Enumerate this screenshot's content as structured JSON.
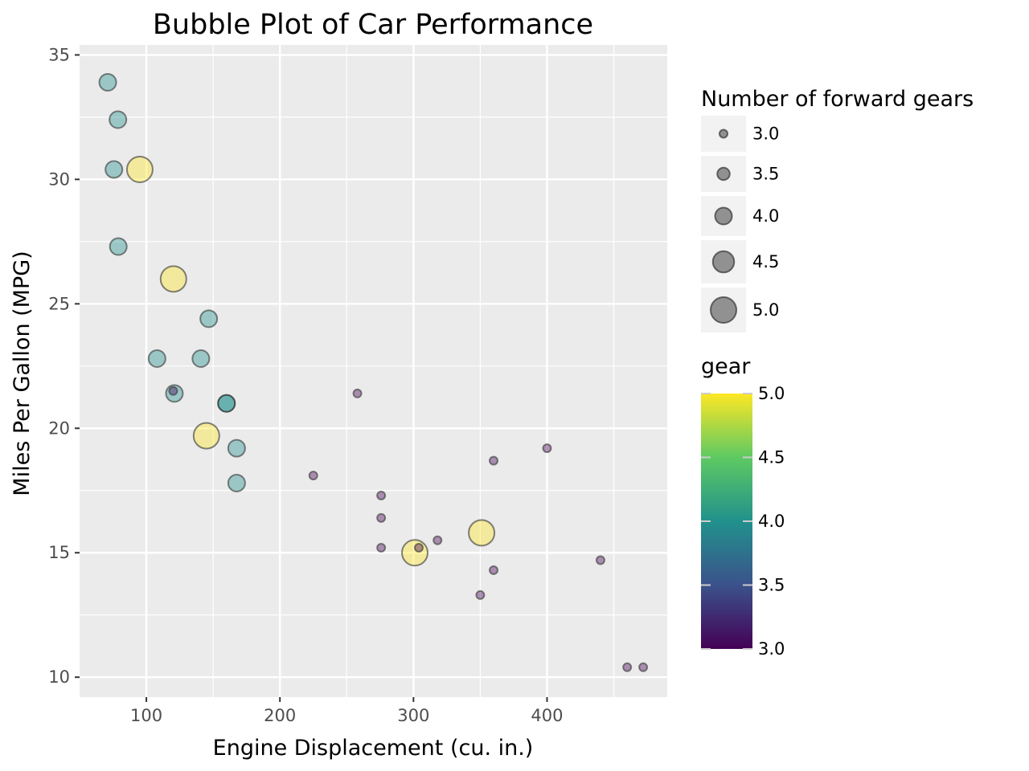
{
  "chart_data": {
    "type": "scatter",
    "title": "Bubble Plot of Car Performance",
    "xlabel": "Engine Displacement (cu. in.)",
    "ylabel": "Miles Per Gallon (MPG)",
    "xlim": [
      50,
      490
    ],
    "ylim": [
      9.2,
      35.4
    ],
    "x_ticks": [
      100,
      200,
      300,
      400
    ],
    "y_ticks": [
      10,
      15,
      20,
      25,
      30,
      35
    ],
    "grid": true,
    "points": [
      {
        "x": 160,
        "y": 21.0,
        "gear": 4
      },
      {
        "x": 160,
        "y": 21.0,
        "gear": 4
      },
      {
        "x": 108,
        "y": 22.8,
        "gear": 4
      },
      {
        "x": 258,
        "y": 21.4,
        "gear": 3
      },
      {
        "x": 360,
        "y": 18.7,
        "gear": 3
      },
      {
        "x": 225,
        "y": 18.1,
        "gear": 3
      },
      {
        "x": 360,
        "y": 14.3,
        "gear": 3
      },
      {
        "x": 146.7,
        "y": 24.4,
        "gear": 4
      },
      {
        "x": 140.8,
        "y": 22.8,
        "gear": 4
      },
      {
        "x": 167.6,
        "y": 19.2,
        "gear": 4
      },
      {
        "x": 167.6,
        "y": 17.8,
        "gear": 4
      },
      {
        "x": 275.8,
        "y": 16.4,
        "gear": 3
      },
      {
        "x": 275.8,
        "y": 17.3,
        "gear": 3
      },
      {
        "x": 275.8,
        "y": 15.2,
        "gear": 3
      },
      {
        "x": 472,
        "y": 10.4,
        "gear": 3
      },
      {
        "x": 460,
        "y": 10.4,
        "gear": 3
      },
      {
        "x": 440,
        "y": 14.7,
        "gear": 3
      },
      {
        "x": 78.7,
        "y": 32.4,
        "gear": 4
      },
      {
        "x": 75.7,
        "y": 30.4,
        "gear": 4
      },
      {
        "x": 71.1,
        "y": 33.9,
        "gear": 4
      },
      {
        "x": 120.1,
        "y": 21.5,
        "gear": 3
      },
      {
        "x": 318,
        "y": 15.5,
        "gear": 3
      },
      {
        "x": 304,
        "y": 15.2,
        "gear": 3
      },
      {
        "x": 350,
        "y": 13.3,
        "gear": 3
      },
      {
        "x": 400,
        "y": 19.2,
        "gear": 3
      },
      {
        "x": 79,
        "y": 27.3,
        "gear": 4
      },
      {
        "x": 120.3,
        "y": 26.0,
        "gear": 5
      },
      {
        "x": 95.1,
        "y": 30.4,
        "gear": 5
      },
      {
        "x": 351,
        "y": 15.8,
        "gear": 5
      },
      {
        "x": 145,
        "y": 19.7,
        "gear": 5
      },
      {
        "x": 301,
        "y": 15.0,
        "gear": 5
      },
      {
        "x": 121,
        "y": 21.4,
        "gear": 4
      }
    ],
    "size_legend": {
      "title": "Number of forward gears",
      "entries": [
        "3.0",
        "3.5",
        "4.0",
        "4.5",
        "5.0"
      ]
    },
    "color_legend": {
      "title": "gear",
      "ticks": [
        "3.0",
        "3.5",
        "4.0",
        "4.5",
        "5.0"
      ],
      "colormap": "viridis"
    },
    "colors": {
      "panel_bg": "#ebebeb",
      "grid": "#ffffff",
      "point_stroke": "#333333",
      "legend_key_bg": "#f2f2f2",
      "viridis": [
        "#440154",
        "#3b528b",
        "#21918c",
        "#5ec962",
        "#fde725"
      ]
    }
  }
}
